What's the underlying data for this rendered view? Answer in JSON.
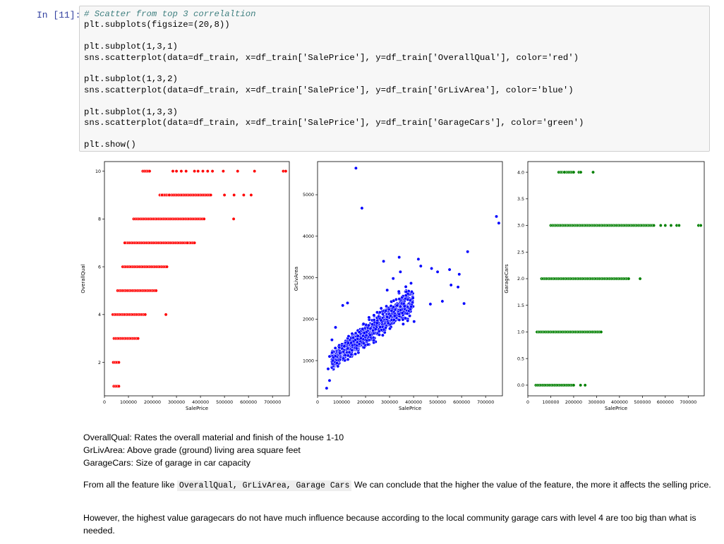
{
  "cell": {
    "prompt": "In [11]:",
    "lines": [
      "# Scatter from top 3 correlaltion",
      "plt.subplots(figsize=(20,8))",
      "",
      "plt.subplot(1,3,1)",
      "sns.scatterplot(data=df_train, x=df_train['SalePrice'], y=df_train['OverallQual'], color='red')",
      "",
      "plt.subplot(1,3,2)",
      "sns.scatterplot(data=df_train, x=df_train['SalePrice'], y=df_train['GrLivArea'], color='blue')",
      "",
      "plt.subplot(1,3,3)",
      "sns.scatterplot(data=df_train, x=df_train['SalePrice'], y=df_train['GarageCars'], color='green')",
      "",
      "plt.show()"
    ]
  },
  "chart_data": [
    {
      "type": "scatter",
      "color": "#ff0000",
      "xlabel": "SalePrice",
      "ylabel": "OverallQual",
      "xlim": [
        0,
        770000
      ],
      "ylim": [
        0.6,
        10.4
      ],
      "xticks": [
        0,
        100000,
        200000,
        300000,
        400000,
        500000,
        600000,
        700000
      ],
      "yticks": [
        2,
        4,
        6,
        8,
        10
      ],
      "bands": [
        {
          "y": 1,
          "x": [
            39000,
            60000
          ]
        },
        {
          "y": 2,
          "x": [
            37000,
            60000
          ]
        },
        {
          "y": 3,
          "x": [
            40000,
            140000
          ]
        },
        {
          "y": 4,
          "x": [
            35000,
            170000
          ],
          "extra": [
            256000
          ]
        },
        {
          "y": 5,
          "x": [
            55000,
            215000
          ]
        },
        {
          "y": 6,
          "x": [
            76000,
            260000
          ]
        },
        {
          "y": 7,
          "x": [
            84000,
            375000
          ],
          "extra": [
            85000,
            345000
          ]
        },
        {
          "y": 8,
          "x": [
            122000,
            415000
          ],
          "extra": [
            538000
          ]
        },
        {
          "y": 9,
          "x": [
            231000,
            443000
          ],
          "extra": [
            240000,
            270000,
            500000,
            540000,
            580000,
            611000
          ]
        },
        {
          "y": 10,
          "x": [
            160000,
            188000
          ],
          "extra": [
            285000,
            300000,
            320000,
            340000,
            375000,
            390000,
            410000,
            430000,
            450000,
            495000,
            555000,
            625000,
            745000,
            755000
          ]
        }
      ]
    },
    {
      "type": "scatter",
      "color": "#0000ff",
      "xlabel": "SalePrice",
      "ylabel": "GrLivArea",
      "xlim": [
        0,
        770000
      ],
      "ylim": [
        150,
        5800
      ],
      "xticks": [
        0,
        100000,
        200000,
        300000,
        400000,
        500000,
        600000,
        700000
      ],
      "yticks": [
        1000,
        2000,
        3000,
        4000,
        5000
      ],
      "points": [
        [
          160000,
          5642
        ],
        [
          185000,
          4676
        ],
        [
          745000,
          4476
        ],
        [
          755000,
          4316
        ],
        [
          625000,
          3627
        ],
        [
          430000,
          3279
        ],
        [
          475000,
          3222
        ],
        [
          550000,
          3194
        ],
        [
          590000,
          3082
        ],
        [
          340000,
          3493
        ],
        [
          275000,
          3395
        ],
        [
          420000,
          3447
        ],
        [
          500000,
          3140
        ],
        [
          556000,
          2822
        ],
        [
          585000,
          2775
        ],
        [
          610000,
          2376
        ],
        [
          520000,
          2430
        ],
        [
          470000,
          2363
        ],
        [
          390000,
          2300
        ],
        [
          402000,
          1942
        ],
        [
          315000,
          2980
        ],
        [
          345000,
          3140
        ],
        [
          290000,
          2700
        ],
        [
          105000,
          2330
        ],
        [
          125000,
          2390
        ],
        [
          75000,
          1800
        ],
        [
          60000,
          1500
        ],
        [
          50000,
          1100
        ],
        [
          44000,
          800
        ],
        [
          38000,
          334
        ],
        [
          50000,
          520
        ]
      ],
      "cloud": {
        "x": [
          60000,
          400000
        ],
        "center": [
          1000,
          2500
        ],
        "spread": 480
      }
    },
    {
      "type": "scatter",
      "color": "#008000",
      "xlabel": "SalePrice",
      "ylabel": "GarageCars",
      "xlim": [
        0,
        770000
      ],
      "ylim": [
        -0.2,
        4.2
      ],
      "xticks": [
        0,
        100000,
        200000,
        300000,
        400000,
        500000,
        600000,
        700000
      ],
      "yticks": [
        0.0,
        0.5,
        1.0,
        1.5,
        2.0,
        2.5,
        3.0,
        3.5,
        4.0
      ],
      "bands": [
        {
          "y": 0,
          "x": [
            35000,
            200000
          ],
          "extra": [
            230000,
            250000
          ]
        },
        {
          "y": 1,
          "x": [
            40000,
            320000
          ]
        },
        {
          "y": 2,
          "x": [
            60000,
            440000
          ],
          "extra": [
            490000
          ]
        },
        {
          "y": 3,
          "x": [
            100000,
            550000
          ],
          "extra": [
            580000,
            600000,
            625000,
            650000,
            660000,
            745000,
            755000
          ]
        },
        {
          "y": 4,
          "x": [
            135000,
            200000
          ],
          "extra": [
            160000,
            223000,
            231000,
            285000
          ]
        }
      ]
    }
  ],
  "markdown": {
    "p1": [
      "OverallQual: Rates the overall material and finish of the house 1-10",
      "GrLivArea: Above grade (ground) living area square feet",
      "GarageCars: Size of garage in car capacity"
    ],
    "p2_before": "From all the feature like ",
    "p2_code": "OverallQual, GrLivArea, Garage Cars",
    "p2_after": " We can conclude that the higher the value of the feature, the more it affects the selling price.",
    "p3": "However, the highest value garagecars do not have much influence because according to the local community garage cars with level 4 are too big than what is needed."
  }
}
